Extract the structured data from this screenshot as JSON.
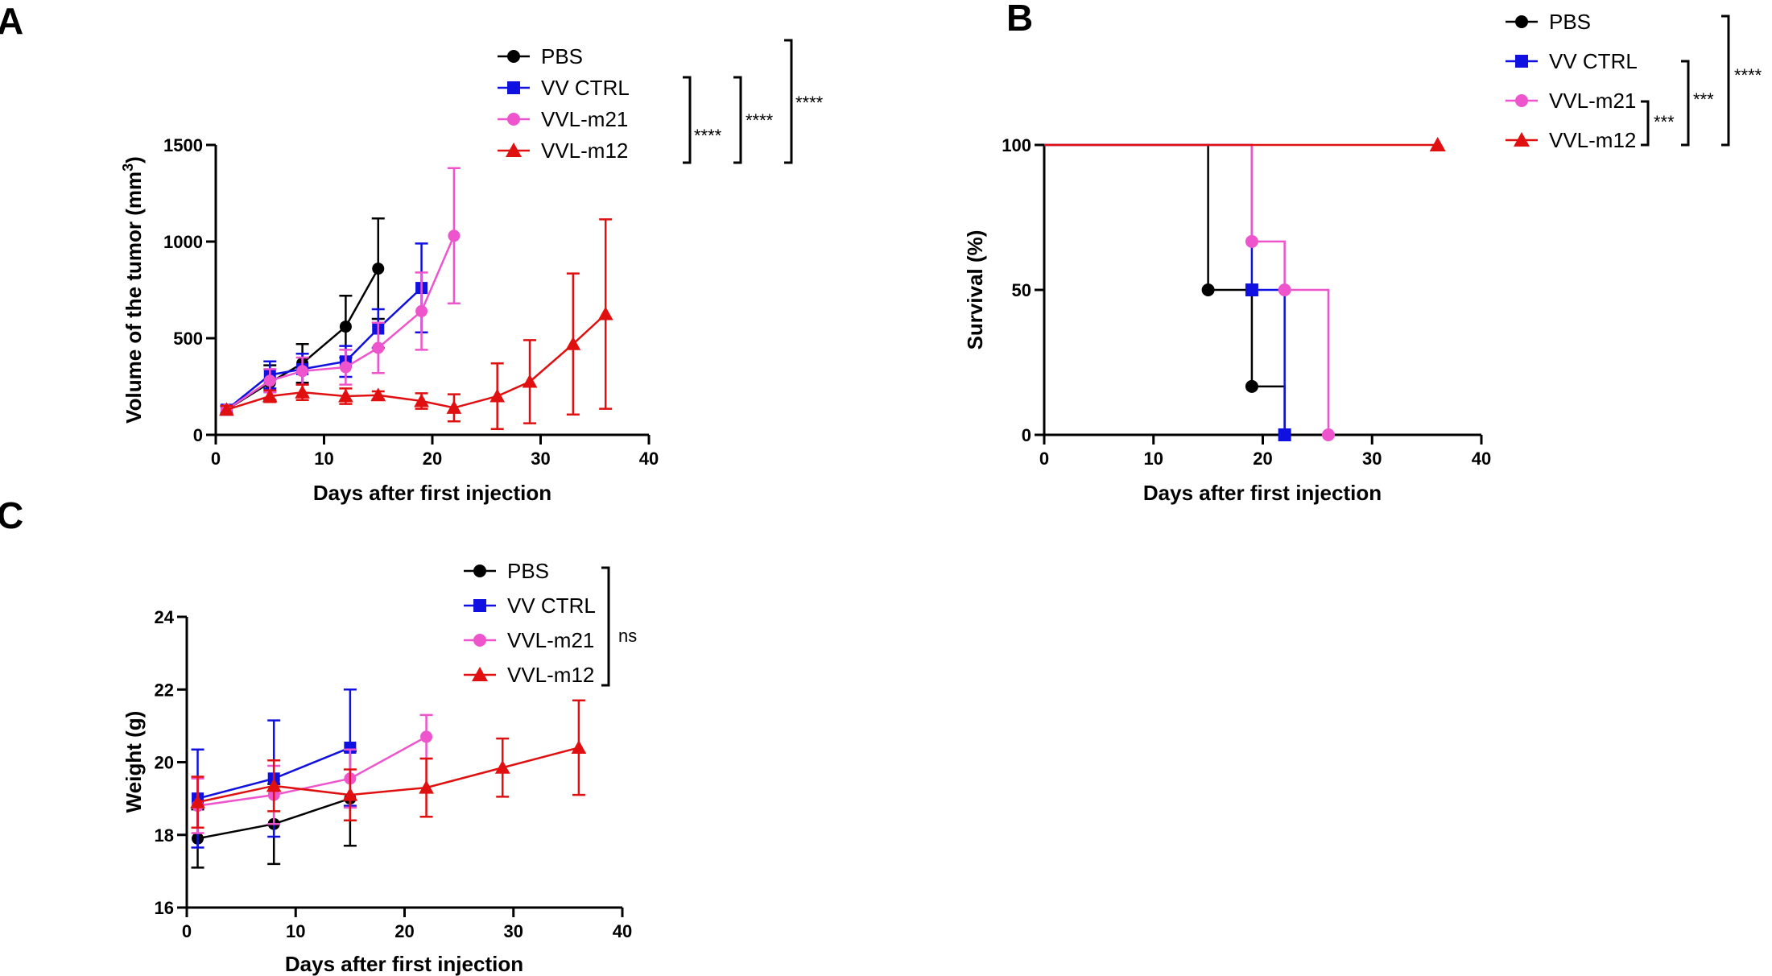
{
  "colors": {
    "PBS": "#000000",
    "VV CTRL": "#1010e0",
    "VVL-m21": "#ee55cc",
    "VVL-m12": "#e01010"
  },
  "chart_data": [
    {
      "id": "A",
      "panel_label": "A",
      "type": "line",
      "xlabel": "Days after first injection",
      "ylabel": "Volume of the tumor (mm",
      "ylabel_sup": "3",
      "ylabel_end": ")",
      "xlim": [
        0,
        40
      ],
      "ylim": [
        0,
        1500
      ],
      "xticks": [
        0,
        10,
        20,
        30,
        40
      ],
      "yticks": [
        0,
        500,
        1000,
        1500
      ],
      "legend": [
        "PBS",
        "VV CTRL",
        "VVL-m21",
        "VVL-m12"
      ],
      "significance": [
        "****",
        "****",
        "****"
      ],
      "series": [
        {
          "name": "PBS",
          "marker": "circle",
          "x": [
            1,
            5,
            8,
            12,
            15
          ],
          "y": [
            130,
            270,
            370,
            560,
            860
          ],
          "err": [
            20,
            90,
            100,
            160,
            260
          ]
        },
        {
          "name": "VV CTRL",
          "marker": "square",
          "x": [
            1,
            5,
            8,
            12,
            15,
            19
          ],
          "y": [
            130,
            310,
            340,
            380,
            550,
            760
          ],
          "err": [
            20,
            70,
            80,
            80,
            100,
            230
          ]
        },
        {
          "name": "VVL-m21",
          "marker": "circle",
          "x": [
            1,
            5,
            8,
            12,
            15,
            19,
            22
          ],
          "y": [
            130,
            280,
            330,
            350,
            450,
            640,
            1030
          ],
          "err": [
            20,
            60,
            70,
            90,
            130,
            200,
            350
          ]
        },
        {
          "name": "VVL-m12",
          "marker": "triangle",
          "x": [
            1,
            5,
            8,
            12,
            15,
            19,
            22,
            26,
            29,
            33,
            36
          ],
          "y": [
            130,
            200,
            220,
            200,
            205,
            175,
            140,
            200,
            275,
            470,
            625
          ],
          "err": [
            20,
            30,
            40,
            40,
            20,
            40,
            70,
            170,
            215,
            365,
            490
          ]
        }
      ]
    },
    {
      "id": "B",
      "panel_label": "B",
      "type": "line",
      "xlabel": "Days after first injection",
      "ylabel": "Survival (%)",
      "xlim": [
        0,
        40
      ],
      "ylim": [
        0,
        100
      ],
      "xticks": [
        0,
        10,
        20,
        30,
        40
      ],
      "yticks": [
        0,
        50,
        100
      ],
      "legend": [
        "PBS",
        "VV CTRL",
        "VVL-m21",
        "VVL-m12"
      ],
      "significance": [
        "***",
        "***",
        "****"
      ],
      "series": [
        {
          "name": "PBS",
          "marker": "circle",
          "step": [
            [
              0,
              100
            ],
            [
              15,
              100
            ],
            [
              15,
              50
            ],
            [
              19,
              50
            ],
            [
              19,
              16.7
            ],
            [
              22,
              16.7
            ],
            [
              22,
              0
            ]
          ],
          "markers": [
            [
              15,
              50
            ],
            [
              19,
              16.7
            ],
            [
              22,
              0
            ]
          ]
        },
        {
          "name": "VV CTRL",
          "marker": "square",
          "step": [
            [
              0,
              100
            ],
            [
              19,
              100
            ],
            [
              19,
              50
            ],
            [
              22,
              50
            ],
            [
              22,
              0
            ]
          ],
          "markers": [
            [
              19,
              50
            ],
            [
              22,
              0
            ]
          ]
        },
        {
          "name": "VVL-m21",
          "marker": "circle",
          "step": [
            [
              0,
              100
            ],
            [
              19,
              100
            ],
            [
              19,
              66.7
            ],
            [
              22,
              66.7
            ],
            [
              22,
              50
            ],
            [
              26,
              50
            ],
            [
              26,
              0
            ]
          ],
          "markers": [
            [
              19,
              66.7
            ],
            [
              22,
              50
            ],
            [
              26,
              0
            ]
          ]
        },
        {
          "name": "VVL-m12",
          "marker": "triangle",
          "step": [
            [
              0,
              100
            ],
            [
              36,
              100
            ]
          ],
          "markers": [
            [
              36,
              100
            ]
          ]
        }
      ]
    },
    {
      "id": "C",
      "panel_label": "C",
      "type": "line",
      "xlabel": "Days after first injection",
      "ylabel": "Weight (g)",
      "xlim": [
        0,
        40
      ],
      "ylim": [
        16,
        24
      ],
      "xticks": [
        0,
        10,
        20,
        30,
        40
      ],
      "yticks": [
        16,
        18,
        20,
        22,
        24
      ],
      "legend": [
        "PBS",
        "VV CTRL",
        "VVL-m21",
        "VVL-m12"
      ],
      "significance": [
        "ns"
      ],
      "series": [
        {
          "name": "PBS",
          "marker": "circle",
          "x": [
            1,
            8,
            15
          ],
          "y": [
            17.9,
            18.3,
            19.0
          ],
          "err": [
            0.8,
            1.1,
            1.3
          ]
        },
        {
          "name": "VV CTRL",
          "marker": "square",
          "x": [
            1,
            8,
            15
          ],
          "y": [
            19.0,
            19.55,
            20.4
          ],
          "err": [
            1.35,
            1.6,
            1.6
          ]
        },
        {
          "name": "VVL-m21",
          "marker": "circle",
          "x": [
            1,
            8,
            15,
            22
          ],
          "y": [
            18.8,
            19.1,
            19.55,
            20.7
          ],
          "err": [
            0.75,
            0.8,
            0.8,
            0.6
          ]
        },
        {
          "name": "VVL-m12",
          "marker": "triangle",
          "x": [
            1,
            8,
            15,
            22,
            29,
            36
          ],
          "y": [
            18.9,
            19.35,
            19.1,
            19.3,
            19.85,
            20.4
          ],
          "err": [
            0.7,
            0.7,
            0.7,
            0.8,
            0.8,
            1.3
          ]
        }
      ]
    }
  ]
}
